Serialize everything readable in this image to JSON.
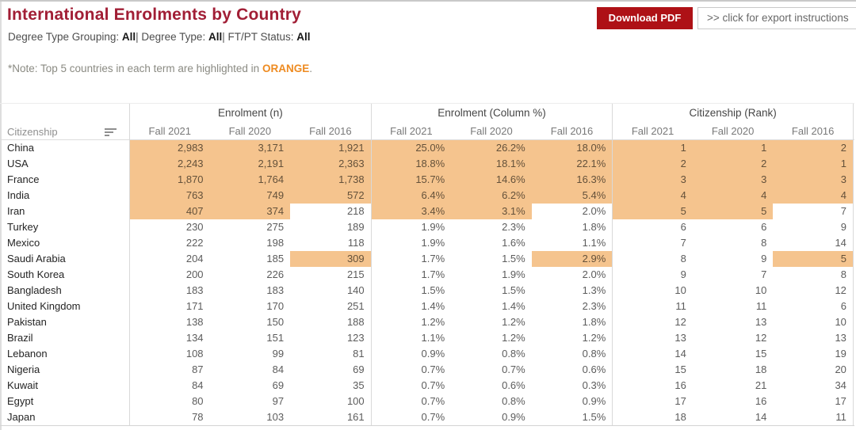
{
  "header": {
    "title": "International Enrolments by Country",
    "filters": [
      {
        "label": "Degree Type Grouping:",
        "value": "All"
      },
      {
        "label": "Degree Type:",
        "value": "All"
      },
      {
        "label": "FT/PT Status:",
        "value": "All"
      }
    ],
    "filter_separator": "| ",
    "note_prefix": "*Note: Top 5 countries in each term are highlighted in ",
    "note_highlight": "ORANGE",
    "note_suffix": ".",
    "download_button": "Download PDF",
    "export_link": ">> click for export instructions"
  },
  "colors": {
    "title_red": "#a11e35",
    "button_red": "#ae1116",
    "highlight_orange": "#f5c48e",
    "note_orange": "#ee8b21"
  },
  "table": {
    "citizenship_label": "Citizenship",
    "sort_icon": "sort-bars",
    "groups": [
      {
        "label": "Enrolment (n)"
      },
      {
        "label": "Enrolment (Column %)"
      },
      {
        "label": "Citizenship (Rank)"
      }
    ],
    "terms": [
      "Fall 2021",
      "Fall 2020",
      "Fall 2016"
    ],
    "rows": [
      {
        "country": "China",
        "n": [
          "2,983",
          "3,171",
          "1,921"
        ],
        "pct": [
          "25.0%",
          "26.2%",
          "18.0%"
        ],
        "rank": [
          "1",
          "1",
          "2"
        ],
        "hl": [
          1,
          1,
          1
        ]
      },
      {
        "country": "USA",
        "n": [
          "2,243",
          "2,191",
          "2,363"
        ],
        "pct": [
          "18.8%",
          "18.1%",
          "22.1%"
        ],
        "rank": [
          "2",
          "2",
          "1"
        ],
        "hl": [
          1,
          1,
          1
        ]
      },
      {
        "country": "France",
        "n": [
          "1,870",
          "1,764",
          "1,738"
        ],
        "pct": [
          "15.7%",
          "14.6%",
          "16.3%"
        ],
        "rank": [
          "3",
          "3",
          "3"
        ],
        "hl": [
          1,
          1,
          1
        ]
      },
      {
        "country": "India",
        "n": [
          "763",
          "749",
          "572"
        ],
        "pct": [
          "6.4%",
          "6.2%",
          "5.4%"
        ],
        "rank": [
          "4",
          "4",
          "4"
        ],
        "hl": [
          1,
          1,
          1
        ]
      },
      {
        "country": "Iran",
        "n": [
          "407",
          "374",
          "218"
        ],
        "pct": [
          "3.4%",
          "3.1%",
          "2.0%"
        ],
        "rank": [
          "5",
          "5",
          "7"
        ],
        "hl": [
          1,
          1,
          0
        ]
      },
      {
        "country": "Turkey",
        "n": [
          "230",
          "275",
          "189"
        ],
        "pct": [
          "1.9%",
          "2.3%",
          "1.8%"
        ],
        "rank": [
          "6",
          "6",
          "9"
        ],
        "hl": [
          0,
          0,
          0
        ]
      },
      {
        "country": "Mexico",
        "n": [
          "222",
          "198",
          "118"
        ],
        "pct": [
          "1.9%",
          "1.6%",
          "1.1%"
        ],
        "rank": [
          "7",
          "8",
          "14"
        ],
        "hl": [
          0,
          0,
          0
        ]
      },
      {
        "country": "Saudi Arabia",
        "n": [
          "204",
          "185",
          "309"
        ],
        "pct": [
          "1.7%",
          "1.5%",
          "2.9%"
        ],
        "rank": [
          "8",
          "9",
          "5"
        ],
        "hl": [
          0,
          0,
          1
        ]
      },
      {
        "country": "South Korea",
        "n": [
          "200",
          "226",
          "215"
        ],
        "pct": [
          "1.7%",
          "1.9%",
          "2.0%"
        ],
        "rank": [
          "9",
          "7",
          "8"
        ],
        "hl": [
          0,
          0,
          0
        ]
      },
      {
        "country": "Bangladesh",
        "n": [
          "183",
          "183",
          "140"
        ],
        "pct": [
          "1.5%",
          "1.5%",
          "1.3%"
        ],
        "rank": [
          "10",
          "10",
          "12"
        ],
        "hl": [
          0,
          0,
          0
        ]
      },
      {
        "country": "United Kingdom",
        "n": [
          "171",
          "170",
          "251"
        ],
        "pct": [
          "1.4%",
          "1.4%",
          "2.3%"
        ],
        "rank": [
          "11",
          "11",
          "6"
        ],
        "hl": [
          0,
          0,
          0
        ]
      },
      {
        "country": "Pakistan",
        "n": [
          "138",
          "150",
          "188"
        ],
        "pct": [
          "1.2%",
          "1.2%",
          "1.8%"
        ],
        "rank": [
          "12",
          "13",
          "10"
        ],
        "hl": [
          0,
          0,
          0
        ]
      },
      {
        "country": "Brazil",
        "n": [
          "134",
          "151",
          "123"
        ],
        "pct": [
          "1.1%",
          "1.2%",
          "1.2%"
        ],
        "rank": [
          "13",
          "12",
          "13"
        ],
        "hl": [
          0,
          0,
          0
        ]
      },
      {
        "country": "Lebanon",
        "n": [
          "108",
          "99",
          "81"
        ],
        "pct": [
          "0.9%",
          "0.8%",
          "0.8%"
        ],
        "rank": [
          "14",
          "15",
          "19"
        ],
        "hl": [
          0,
          0,
          0
        ]
      },
      {
        "country": "Nigeria",
        "n": [
          "87",
          "84",
          "69"
        ],
        "pct": [
          "0.7%",
          "0.7%",
          "0.6%"
        ],
        "rank": [
          "15",
          "18",
          "20"
        ],
        "hl": [
          0,
          0,
          0
        ]
      },
      {
        "country": "Kuwait",
        "n": [
          "84",
          "69",
          "35"
        ],
        "pct": [
          "0.7%",
          "0.6%",
          "0.3%"
        ],
        "rank": [
          "16",
          "21",
          "34"
        ],
        "hl": [
          0,
          0,
          0
        ]
      },
      {
        "country": "Egypt",
        "n": [
          "80",
          "97",
          "100"
        ],
        "pct": [
          "0.7%",
          "0.8%",
          "0.9%"
        ],
        "rank": [
          "17",
          "16",
          "17"
        ],
        "hl": [
          0,
          0,
          0
        ]
      },
      {
        "country": "Japan",
        "n": [
          "78",
          "103",
          "161"
        ],
        "pct": [
          "0.7%",
          "0.9%",
          "1.5%"
        ],
        "rank": [
          "18",
          "14",
          "11"
        ],
        "hl": [
          0,
          0,
          0
        ]
      }
    ]
  }
}
